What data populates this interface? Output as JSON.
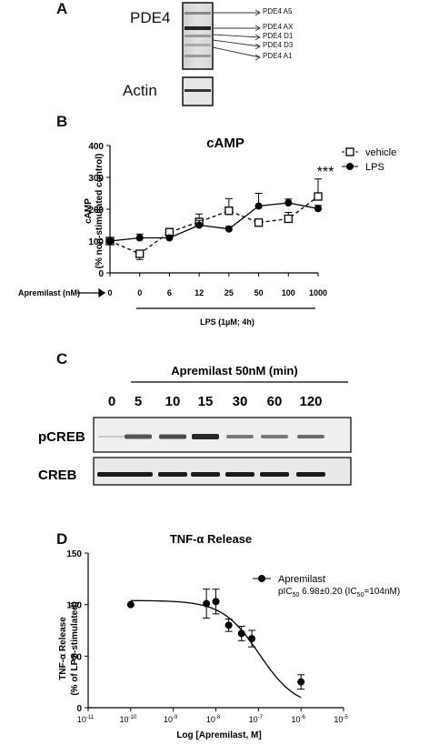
{
  "panelA": {
    "letter": "A",
    "label_pde4": "PDE4",
    "label_actin": "Actin",
    "isoforms": [
      "PDE4 A5",
      "PDE4 AX",
      "PDE4 D1",
      "PDE4 D3",
      "PDE4 A1"
    ]
  },
  "panelB": {
    "letter": "B",
    "title": "cAMP",
    "ylabel_line1": "cAMP",
    "ylabel_line2": "(% non-stimulated control)",
    "xlabel_prefix": "Apremilast (nM)",
    "lps_label": "LPS (1µM; 4h)",
    "significance": "***",
    "legend": [
      "vehicle",
      "LPS"
    ],
    "yticks": [
      "0",
      "100",
      "200",
      "300",
      "400"
    ],
    "xticks": [
      "0",
      "0",
      "6",
      "12",
      "25",
      "50",
      "100",
      "1000"
    ]
  },
  "panelC": {
    "letter": "C",
    "header": "Apremilast 50nM (min)",
    "times": [
      "0",
      "5",
      "10",
      "15",
      "30",
      "60",
      "120"
    ],
    "rows": [
      "pCREB",
      "CREB"
    ]
  },
  "panelD": {
    "letter": "D",
    "title": "TNF-α Release",
    "ylabel_line1": "TNF-α Release",
    "ylabel_line2": "(% of LPS-stimulated)",
    "xlabel": "Log [Apremilast, M]",
    "legend_name": "Apremilast",
    "legend_stat": "pIC50 6.98±0.20 (IC50=104nM)",
    "yticks": [
      "0",
      "50",
      "100",
      "150"
    ],
    "xtick_exponents": [
      "-11",
      "-10",
      "-9",
      "-8",
      "-7",
      "-6",
      "-5"
    ]
  },
  "chart_data": [
    {
      "type": "line",
      "title": "cAMP",
      "xlabel": "Apremilast (nM)",
      "ylabel": "cAMP (% non-stimulated control)",
      "categories": [
        "0",
        "0",
        "6",
        "12",
        "25",
        "50",
        "100",
        "1000"
      ],
      "ylim": [
        0,
        400
      ],
      "series": [
        {
          "name": "vehicle",
          "marker": "open-square",
          "dash": true,
          "values": [
            100,
            60,
            128,
            160,
            195,
            158,
            170,
            240
          ],
          "errors": [
            0,
            18,
            12,
            25,
            38,
            8,
            20,
            55
          ]
        },
        {
          "name": "LPS",
          "marker": "filled-circle",
          "dash": false,
          "values": [
            100,
            110,
            110,
            150,
            138,
            210,
            220,
            202
          ],
          "errors": [
            0,
            12,
            8,
            15,
            8,
            40,
            12,
            10
          ]
        }
      ]
    },
    {
      "type": "scatter",
      "title": "TNF-α Release",
      "xlabel": "Log [Apremilast, M]",
      "ylabel": "TNF-α Release (% of LPS-stimulated)",
      "xscale": "log",
      "xlim": [
        1e-11,
        1e-05
      ],
      "ylim": [
        0,
        150
      ],
      "series": [
        {
          "name": "Apremilast",
          "x": [
            1e-10,
            6e-09,
            1e-08,
            2e-08,
            4e-08,
            7e-08,
            1e-06
          ],
          "y": [
            100,
            101,
            103,
            80,
            72,
            67,
            25
          ],
          "errors": [
            0,
            14,
            12,
            6,
            7,
            8,
            7
          ]
        }
      ],
      "fit": {
        "top": 104,
        "bottom": 0,
        "log_ic50": -6.98
      }
    }
  ]
}
